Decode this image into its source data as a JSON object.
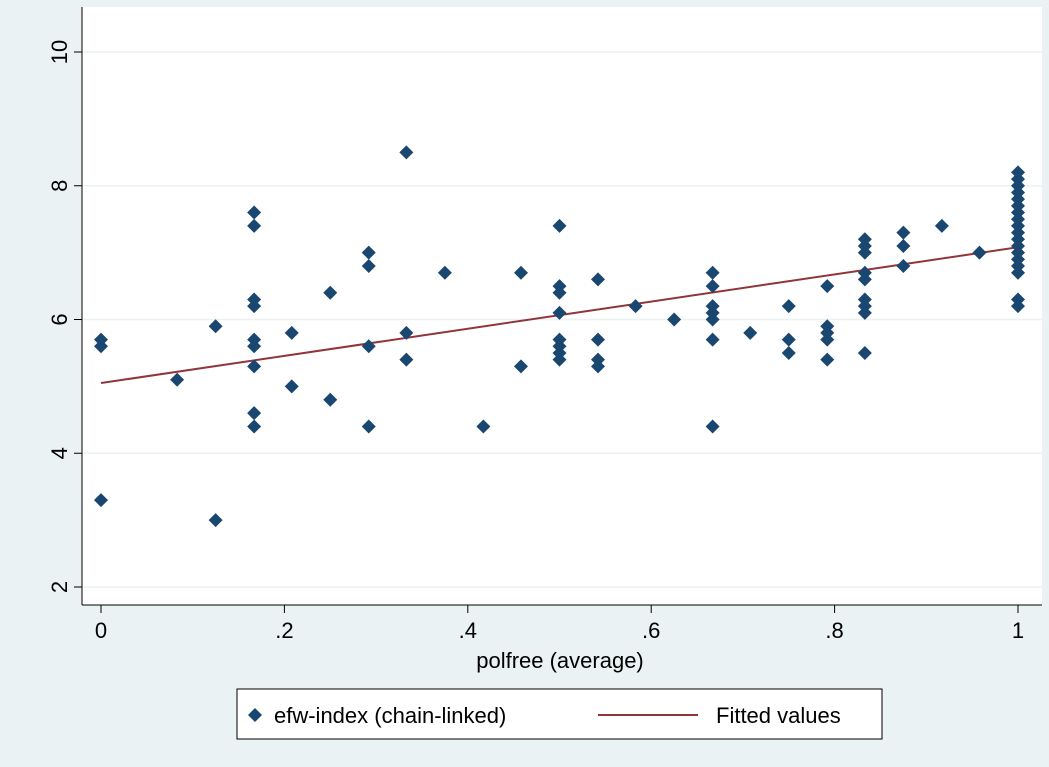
{
  "colors": {
    "page_background": "#eaf2f3",
    "plot_background": "#ffffff",
    "gridline": "#eaf2f3",
    "marker": "#1a476f",
    "fit_line": "#90353b"
  },
  "chart_data": {
    "type": "scatter",
    "title": "",
    "xlabel": "polfree (average)",
    "ylabel": "",
    "xlim": [
      0,
      1
    ],
    "ylim": [
      2,
      10
    ],
    "x_ticks": [
      {
        "value": 0,
        "label": "0"
      },
      {
        "value": 0.2,
        "label": ".2"
      },
      {
        "value": 0.4,
        "label": ".4"
      },
      {
        "value": 0.6,
        "label": ".6"
      },
      {
        "value": 0.8,
        "label": ".8"
      },
      {
        "value": 1,
        "label": "1"
      }
    ],
    "y_ticks": [
      {
        "value": 2,
        "label": "2"
      },
      {
        "value": 4,
        "label": "4"
      },
      {
        "value": 6,
        "label": "6"
      },
      {
        "value": 8,
        "label": "8"
      },
      {
        "value": 10,
        "label": "10"
      }
    ],
    "grid": "horizontal",
    "legend_position": "bottom",
    "series": [
      {
        "name": "efw-index (chain-linked)",
        "kind": "scatter",
        "marker": "diamond",
        "points": [
          [
            0,
            5.7
          ],
          [
            0,
            5.6
          ],
          [
            0,
            3.3
          ],
          [
            0.083,
            5.1
          ],
          [
            0.125,
            5.9
          ],
          [
            0.125,
            3.0
          ],
          [
            0.167,
            7.6
          ],
          [
            0.167,
            7.4
          ],
          [
            0.167,
            6.3
          ],
          [
            0.167,
            6.2
          ],
          [
            0.167,
            5.7
          ],
          [
            0.167,
            5.6
          ],
          [
            0.167,
            5.3
          ],
          [
            0.167,
            4.6
          ],
          [
            0.167,
            4.4
          ],
          [
            0.208,
            5.8
          ],
          [
            0.208,
            5.0
          ],
          [
            0.25,
            6.4
          ],
          [
            0.25,
            4.8
          ],
          [
            0.292,
            7.0
          ],
          [
            0.292,
            6.8
          ],
          [
            0.292,
            5.6
          ],
          [
            0.292,
            4.4
          ],
          [
            0.333,
            8.5
          ],
          [
            0.333,
            5.8
          ],
          [
            0.333,
            5.4
          ],
          [
            0.375,
            6.7
          ],
          [
            0.417,
            4.4
          ],
          [
            0.458,
            6.7
          ],
          [
            0.458,
            5.3
          ],
          [
            0.5,
            7.4
          ],
          [
            0.5,
            6.5
          ],
          [
            0.5,
            6.4
          ],
          [
            0.5,
            6.1
          ],
          [
            0.5,
            5.7
          ],
          [
            0.5,
            5.6
          ],
          [
            0.5,
            5.5
          ],
          [
            0.5,
            5.4
          ],
          [
            0.542,
            6.6
          ],
          [
            0.542,
            5.7
          ],
          [
            0.542,
            5.4
          ],
          [
            0.542,
            5.3
          ],
          [
            0.583,
            6.2
          ],
          [
            0.625,
            6.0
          ],
          [
            0.667,
            6.7
          ],
          [
            0.667,
            6.5
          ],
          [
            0.667,
            6.2
          ],
          [
            0.667,
            6.1
          ],
          [
            0.667,
            6.0
          ],
          [
            0.667,
            5.7
          ],
          [
            0.667,
            4.4
          ],
          [
            0.708,
            5.8
          ],
          [
            0.75,
            6.2
          ],
          [
            0.75,
            5.7
          ],
          [
            0.75,
            5.5
          ],
          [
            0.792,
            6.5
          ],
          [
            0.792,
            5.9
          ],
          [
            0.792,
            5.8
          ],
          [
            0.792,
            5.7
          ],
          [
            0.792,
            5.4
          ],
          [
            0.833,
            7.2
          ],
          [
            0.833,
            7.1
          ],
          [
            0.833,
            7.0
          ],
          [
            0.833,
            6.7
          ],
          [
            0.833,
            6.6
          ],
          [
            0.833,
            6.3
          ],
          [
            0.833,
            6.2
          ],
          [
            0.833,
            6.1
          ],
          [
            0.833,
            5.5
          ],
          [
            0.875,
            7.3
          ],
          [
            0.875,
            7.1
          ],
          [
            0.875,
            6.8
          ],
          [
            0.917,
            7.4
          ],
          [
            0.958,
            7.0
          ],
          [
            1,
            8.2
          ],
          [
            1,
            8.1
          ],
          [
            1,
            8.0
          ],
          [
            1,
            7.9
          ],
          [
            1,
            7.8
          ],
          [
            1,
            7.7
          ],
          [
            1,
            7.6
          ],
          [
            1,
            7.5
          ],
          [
            1,
            7.4
          ],
          [
            1,
            7.3
          ],
          [
            1,
            7.2
          ],
          [
            1,
            7.1
          ],
          [
            1,
            7.0
          ],
          [
            1,
            6.9
          ],
          [
            1,
            6.8
          ],
          [
            1,
            6.7
          ],
          [
            1,
            6.3
          ],
          [
            1,
            6.2
          ]
        ]
      },
      {
        "name": "Fitted values",
        "kind": "line",
        "points": [
          [
            0,
            5.05
          ],
          [
            1,
            7.08
          ]
        ]
      }
    ]
  }
}
